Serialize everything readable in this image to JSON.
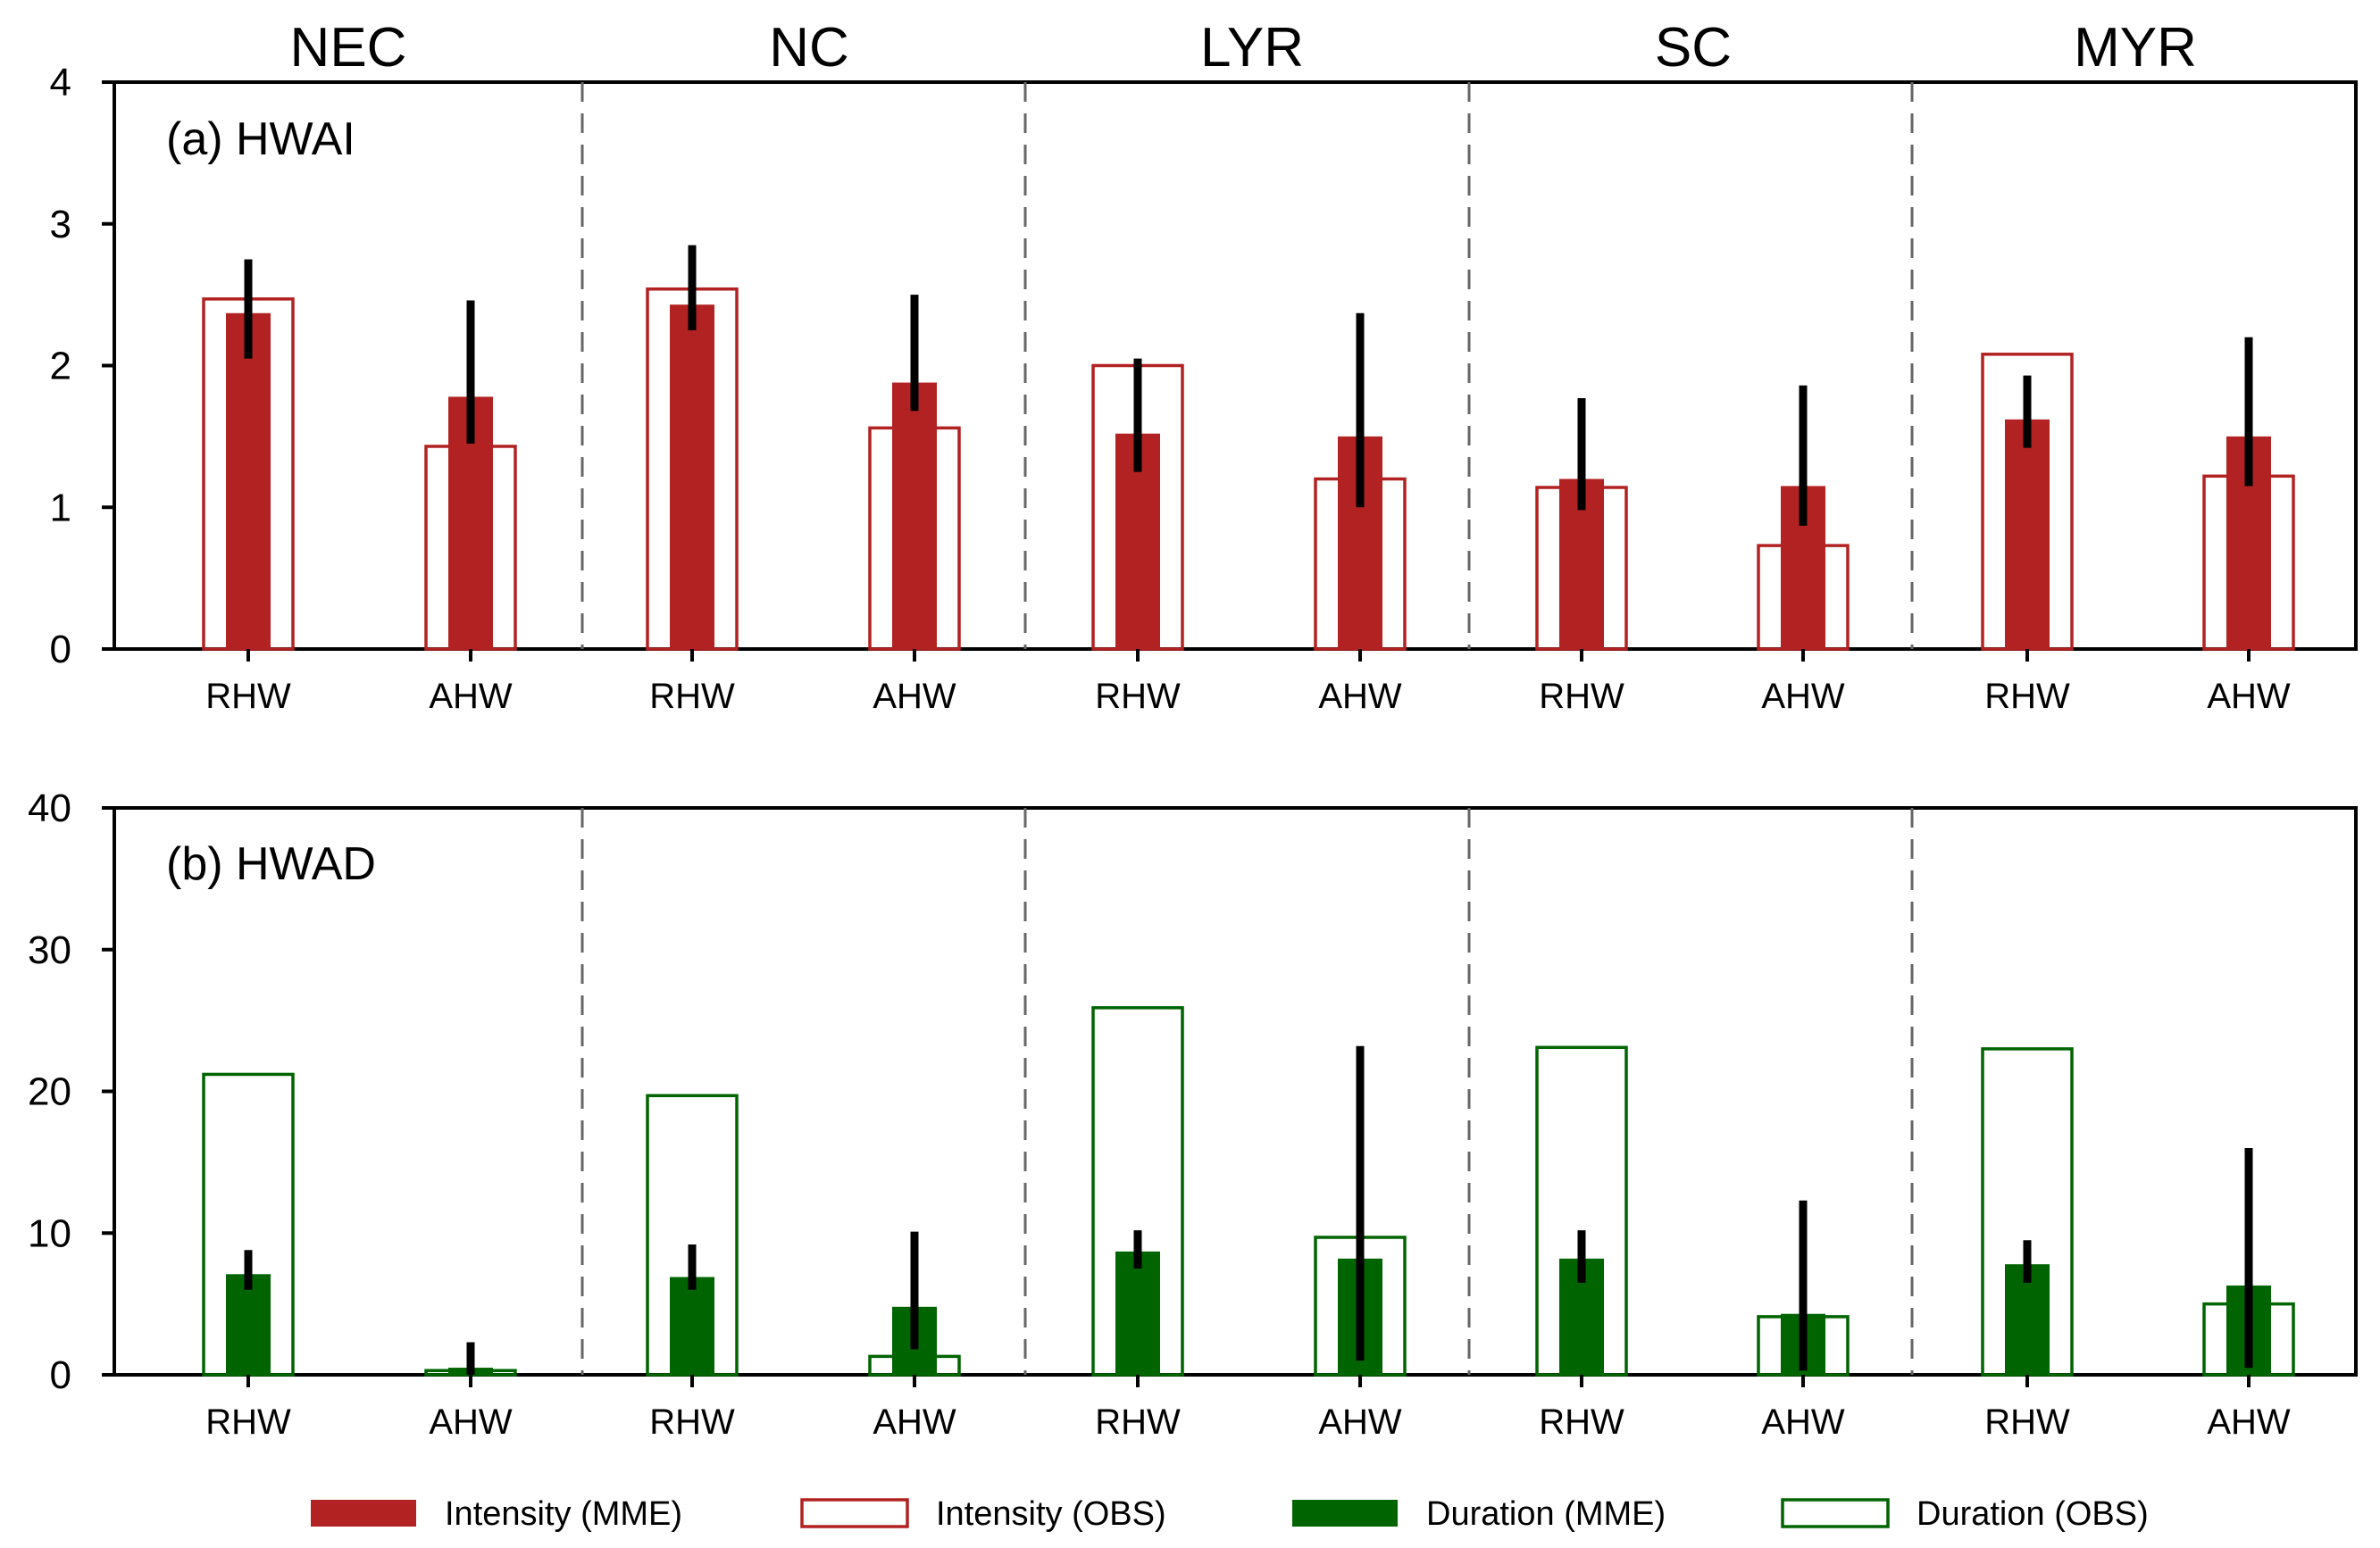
{
  "colors": {
    "intensity": "#b22222",
    "duration": "#006400",
    "errorbar": "#000000",
    "axis": "#000000",
    "divider": "#666666"
  },
  "regions": [
    "NEC",
    "NC",
    "LYR",
    "SC",
    "MYR"
  ],
  "legend": [
    {
      "label": "Intensity (MME)",
      "style": "filled",
      "color_key": "intensity"
    },
    {
      "label": "Intensity (OBS)",
      "style": "outline",
      "color_key": "intensity"
    },
    {
      "label": "Duration (MME)",
      "style": "filled",
      "color_key": "duration"
    },
    {
      "label": "Duration (OBS)",
      "style": "outline",
      "color_key": "duration"
    }
  ],
  "chart_data": [
    {
      "type": "bar",
      "title": "(a) HWAI",
      "color_key": "intensity",
      "ylim": [
        0,
        4
      ],
      "yticks": [
        "0",
        "1",
        "2",
        "3",
        "4"
      ],
      "ytick_values": [
        0,
        1,
        2,
        3,
        4
      ],
      "categories": [
        "RHW",
        "AHW",
        "RHW",
        "AHW",
        "RHW",
        "AHW",
        "RHW",
        "AHW",
        "RHW",
        "AHW"
      ],
      "series": [
        {
          "name": "Intensity (MME)",
          "values": [
            2.37,
            1.78,
            2.43,
            1.88,
            1.52,
            1.5,
            1.2,
            1.15,
            1.62,
            1.5
          ]
        },
        {
          "name": "Intensity (OBS)",
          "values": [
            2.47,
            1.43,
            2.54,
            1.56,
            2.0,
            1.2,
            1.14,
            0.73,
            2.08,
            1.22
          ]
        }
      ],
      "error_low": [
        2.05,
        1.45,
        2.25,
        1.68,
        1.25,
        1.0,
        0.98,
        0.87,
        1.42,
        1.15
      ],
      "error_high": [
        2.75,
        2.46,
        2.85,
        2.5,
        2.05,
        2.37,
        1.77,
        1.86,
        1.93,
        2.2
      ]
    },
    {
      "type": "bar",
      "title": "(b) HWAD",
      "color_key": "duration",
      "ylim": [
        0,
        40
      ],
      "yticks": [
        "0",
        "10",
        "20",
        "30",
        "40"
      ],
      "ytick_values": [
        0,
        10,
        20,
        30,
        40
      ],
      "categories": [
        "RHW",
        "AHW",
        "RHW",
        "AHW",
        "RHW",
        "AHW",
        "RHW",
        "AHW",
        "RHW",
        "AHW"
      ],
      "series": [
        {
          "name": "Duration (MME)",
          "values": [
            7.1,
            0.5,
            6.9,
            4.8,
            8.7,
            8.2,
            8.2,
            4.3,
            7.8,
            6.3
          ]
        },
        {
          "name": "Duration (OBS)",
          "values": [
            21.2,
            0.3,
            19.7,
            1.3,
            25.9,
            9.7,
            23.1,
            4.1,
            23.0,
            5.0
          ]
        }
      ],
      "error_low": [
        6.0,
        0.0,
        6.0,
        1.8,
        7.5,
        1.0,
        6.5,
        0.3,
        6.5,
        0.5
      ],
      "error_high": [
        8.8,
        2.3,
        9.2,
        10.1,
        10.2,
        23.2,
        10.2,
        12.3,
        9.5,
        16.0
      ]
    }
  ]
}
